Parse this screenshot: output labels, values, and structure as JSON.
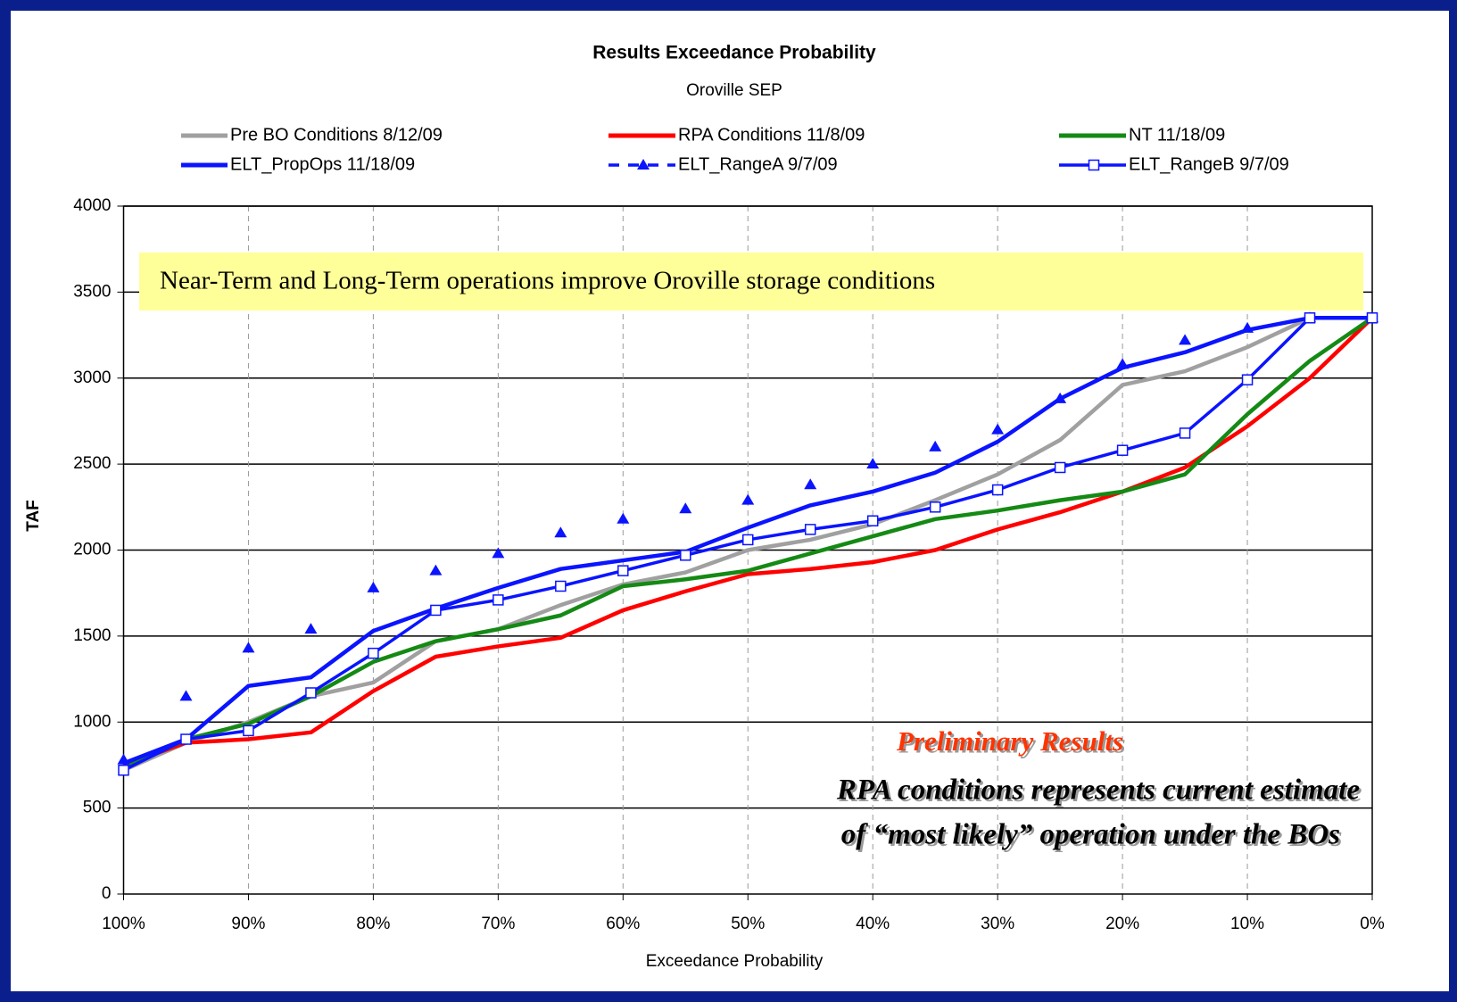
{
  "chart_data": {
    "type": "line",
    "title": "Results Exceedance Probability",
    "subtitle": "Oroville  SEP",
    "xlabel": "Exceedance Probability",
    "ylabel": "TAF",
    "x": [
      100,
      95,
      90,
      85,
      80,
      75,
      70,
      65,
      60,
      55,
      50,
      45,
      40,
      35,
      30,
      25,
      20,
      15,
      10,
      5,
      0
    ],
    "series": [
      {
        "name": "Pre BO Conditions 8/12/09",
        "color": "#a0a0a0",
        "marker": "none",
        "line": true,
        "values": [
          720,
          880,
          1000,
          1150,
          1230,
          1470,
          1540,
          1680,
          1800,
          1870,
          2000,
          2060,
          2150,
          2290,
          2440,
          2640,
          2960,
          3040,
          3180,
          3350,
          3350
        ]
      },
      {
        "name": "RPA Conditions 11/8/09",
        "color": "#ff0000",
        "marker": "none",
        "line": true,
        "values": [
          750,
          880,
          900,
          940,
          1180,
          1380,
          1440,
          1490,
          1650,
          1760,
          1860,
          1890,
          1930,
          2000,
          2120,
          2220,
          2340,
          2480,
          2720,
          3000,
          3350
        ]
      },
      {
        "name": "NT 11/18/09",
        "color": "#148a14",
        "marker": "none",
        "line": true,
        "values": [
          730,
          900,
          990,
          1150,
          1350,
          1470,
          1540,
          1620,
          1790,
          1830,
          1880,
          1980,
          2080,
          2180,
          2230,
          2290,
          2340,
          2440,
          2790,
          3100,
          3350
        ]
      },
      {
        "name": "ELT_PropOps 11/18/09",
        "color": "#0a14ff",
        "marker": "none",
        "line": true,
        "values": [
          760,
          900,
          1210,
          1260,
          1530,
          1660,
          1780,
          1890,
          1940,
          1990,
          2130,
          2260,
          2340,
          2450,
          2630,
          2880,
          3060,
          3150,
          3280,
          3350,
          3350
        ]
      },
      {
        "name": "ELT_RangeA 9/7/09",
        "color": "#0a14ff",
        "marker": "triangle",
        "line": false,
        "values": [
          780,
          1150,
          1430,
          1540,
          1780,
          1880,
          1980,
          2100,
          2180,
          2240,
          2290,
          2380,
          2500,
          2600,
          2700,
          2880,
          3080,
          3220,
          3290,
          3350,
          3350
        ]
      },
      {
        "name": "ELT_RangeB 9/7/09",
        "color": "#0a14ff",
        "marker": "square",
        "line": true,
        "values": [
          720,
          900,
          950,
          1170,
          1400,
          1650,
          1710,
          1790,
          1880,
          1970,
          2060,
          2120,
          2170,
          2250,
          2350,
          2480,
          2580,
          2680,
          2990,
          3350,
          3350
        ]
      }
    ],
    "xlim": [
      100,
      0
    ],
    "xticks": [
      {
        "value": 100,
        "label": "100%"
      },
      {
        "value": 90,
        "label": "90%"
      },
      {
        "value": 80,
        "label": "80%"
      },
      {
        "value": 70,
        "label": "70%"
      },
      {
        "value": 60,
        "label": "60%"
      },
      {
        "value": 50,
        "label": "50%"
      },
      {
        "value": 40,
        "label": "40%"
      },
      {
        "value": 30,
        "label": "30%"
      },
      {
        "value": 20,
        "label": "20%"
      },
      {
        "value": 10,
        "label": "10%"
      },
      {
        "value": 0,
        "label": "0%"
      }
    ],
    "ylim": [
      0,
      4000
    ],
    "yticks": [
      0,
      500,
      1000,
      1500,
      2000,
      2500,
      3000,
      3500,
      4000
    ],
    "xgrid": true,
    "ygrid": true,
    "legend": "top",
    "annotations": [
      "Near-Term and Long-Term operations improve Oroville storage conditions",
      "Preliminary Results",
      "RPA conditions represents current estimate",
      "of “most likely” operation under the BOs"
    ]
  }
}
